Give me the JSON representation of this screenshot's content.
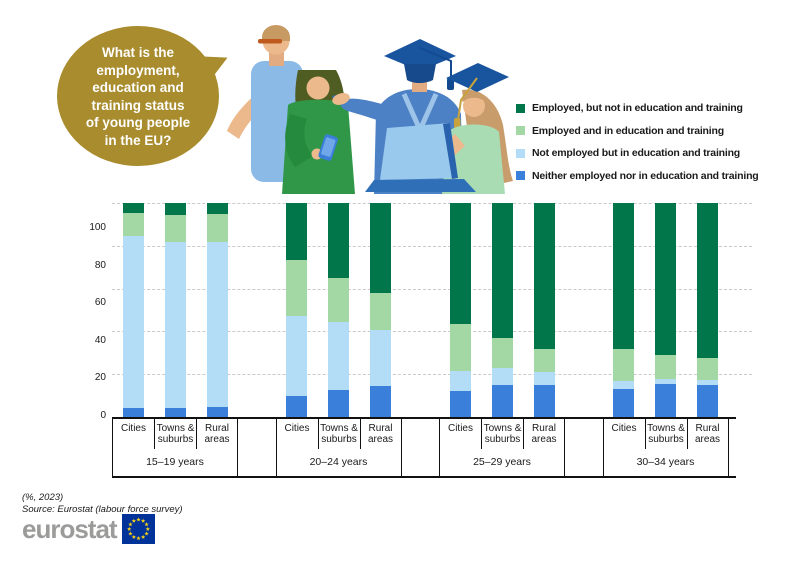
{
  "bubble": {
    "text": "What is the\nemployment,\neducation and\ntraining status\nof young people\nin the EU?"
  },
  "legend": [
    {
      "label": "Employed, but not in education and training",
      "color": "#00764a"
    },
    {
      "label": "Employed and in education and training",
      "color": "#a3d7a4"
    },
    {
      "label": "Not employed but in education and training",
      "color": "#b3dcf7"
    },
    {
      "label": "Neither employed nor in education and training",
      "color": "#3a7fd9"
    }
  ],
  "chart_data": {
    "type": "bar",
    "stacked": true,
    "percent_stacked": true,
    "title": "What is the employment, education and training status of young people in the EU?",
    "unit": "%",
    "year": "2023",
    "categories": [
      "15–19 years",
      "20–24 years",
      "25–29 years",
      "30–34 years"
    ],
    "subcategories": [
      "Cities",
      "Towns & suburbs",
      "Rural areas"
    ],
    "series": [
      {
        "name": "Neither employed nor in education and training",
        "color": "#3a7fd9",
        "values": [
          4,
          4,
          4.5,
          10,
          12.5,
          14.5,
          12,
          15,
          15,
          13,
          15.5,
          15
        ]
      },
      {
        "name": "Not employed but in education and training",
        "color": "#b3dcf7",
        "values": [
          80.5,
          78,
          77.5,
          37,
          32,
          26,
          9.5,
          8,
          6,
          4,
          2.5,
          2.5
        ]
      },
      {
        "name": "Employed and in education and training",
        "color": "#a3d7a4",
        "values": [
          11,
          12.5,
          13,
          26.5,
          20.5,
          17.5,
          22,
          14,
          11,
          15,
          11,
          10
        ]
      },
      {
        "name": "Employed, but not in education and training",
        "color": "#00764a",
        "values": [
          4.5,
          5.5,
          5,
          26.5,
          35,
          42,
          56.5,
          63,
          68,
          68,
          71,
          72.5
        ]
      }
    ],
    "yticks": [
      0,
      20,
      40,
      60,
      80,
      100
    ],
    "gridlines": [
      20,
      40,
      60,
      80,
      100
    ],
    "ylim": [
      0,
      100
    ],
    "grid": "horizontal-dashed",
    "legend_position": "top-right"
  },
  "footer": {
    "note": "(%, 2023)",
    "source": "Source: Eurostat (labour force survey)"
  },
  "logo": {
    "text": "eurostat"
  },
  "colors": {
    "bubble_gold": "#a88c2d",
    "eu_flag_blue": "#003399",
    "eu_star_yellow": "#f7d117",
    "logo_gray": "#9b9b9a"
  }
}
